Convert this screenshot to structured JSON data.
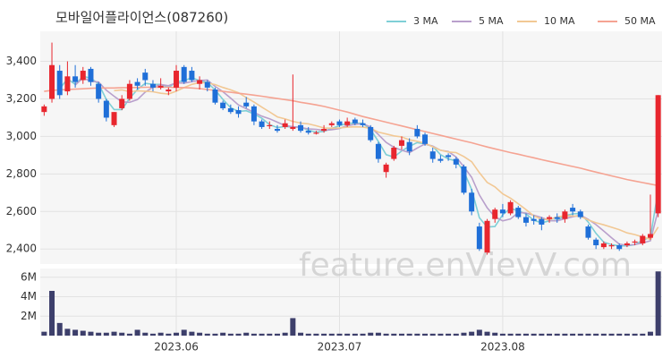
{
  "chart_data": {
    "type": "candlestick",
    "title": "모바일어플라이언스(087260)",
    "watermark": "feature.enVievV.com",
    "categories": [
      null,
      null,
      null,
      null,
      null,
      null,
      null,
      null,
      null,
      null,
      null,
      null,
      null,
      null,
      null,
      null,
      null,
      "2023.06",
      null,
      null,
      null,
      null,
      null,
      null,
      null,
      null,
      null,
      null,
      null,
      null,
      null,
      null,
      null,
      null,
      null,
      null,
      null,
      null,
      "2023.07",
      null,
      null,
      null,
      null,
      null,
      null,
      null,
      null,
      null,
      null,
      null,
      null,
      null,
      null,
      null,
      null,
      null,
      null,
      null,
      null,
      "2023.08",
      null,
      null,
      null,
      null,
      null,
      null,
      null,
      null,
      null,
      null,
      null,
      null,
      null,
      null,
      null,
      null,
      null,
      null,
      null,
      null
    ],
    "open": [
      3130,
      3200,
      3350,
      3240,
      3320,
      3300,
      3360,
      3280,
      3190,
      3060,
      3150,
      3200,
      3290,
      3340,
      3280,
      3260,
      3240,
      3260,
      3370,
      3350,
      3280,
      3290,
      3250,
      3180,
      3150,
      3140,
      3180,
      3160,
      3080,
      3060,
      3040,
      3050,
      3040,
      3060,
      3030,
      3020,
      3030,
      3060,
      3080,
      3060,
      3090,
      3070,
      3050,
      2960,
      2810,
      2880,
      2950,
      2970,
      3040,
      3010,
      2920,
      2880,
      2900,
      2880,
      2840,
      2700,
      2520,
      2380,
      2560,
      2610,
      2590,
      2620,
      2570,
      2560,
      2560,
      2560,
      2570,
      2560,
      2620,
      2600,
      2520,
      2450,
      2410,
      2420,
      2420,
      2420,
      2440,
      2430,
      2460,
      2590
    ],
    "high": [
      3170,
      3500,
      3380,
      3400,
      3380,
      3370,
      3370,
      3290,
      3200,
      3130,
      3220,
      3300,
      3310,
      3360,
      3300,
      3310,
      3260,
      3380,
      3380,
      3370,
      3320,
      3300,
      3260,
      3190,
      3170,
      3160,
      3210,
      3170,
      3090,
      3080,
      3060,
      3090,
      3330,
      3080,
      3050,
      3030,
      3060,
      3080,
      3090,
      3100,
      3100,
      3090,
      3060,
      2970,
      2860,
      2950,
      3000,
      2990,
      3060,
      3020,
      2940,
      2900,
      2910,
      2890,
      2850,
      2720,
      2540,
      2560,
      2620,
      2640,
      2660,
      2630,
      2590,
      2580,
      2570,
      2580,
      2590,
      2610,
      2640,
      2610,
      2530,
      2460,
      2440,
      2430,
      2430,
      2440,
      2450,
      2480,
      2690,
      3220
    ],
    "low": [
      3110,
      3180,
      3200,
      3220,
      3260,
      3280,
      3270,
      3180,
      3080,
      3050,
      3140,
      3190,
      3250,
      3270,
      3240,
      3250,
      3220,
      3240,
      3280,
      3290,
      3250,
      3240,
      3170,
      3140,
      3120,
      3100,
      3150,
      3060,
      3040,
      3040,
      3020,
      3040,
      3030,
      3020,
      3010,
      3010,
      3020,
      3050,
      3050,
      3050,
      3060,
      3050,
      2970,
      2860,
      2780,
      2870,
      2930,
      2900,
      2990,
      2950,
      2860,
      2860,
      2870,
      2830,
      2690,
      2580,
      2390,
      2370,
      2540,
      2570,
      2580,
      2560,
      2520,
      2530,
      2500,
      2540,
      2540,
      2540,
      2580,
      2560,
      2450,
      2400,
      2400,
      2400,
      2390,
      2410,
      2420,
      2420,
      2450,
      2570
    ],
    "close": [
      3160,
      3380,
      3220,
      3320,
      3290,
      3350,
      3290,
      3200,
      3100,
      3130,
      3200,
      3280,
      3270,
      3300,
      3260,
      3270,
      3250,
      3350,
      3290,
      3300,
      3300,
      3260,
      3180,
      3150,
      3130,
      3120,
      3160,
      3080,
      3050,
      3060,
      3030,
      3070,
      3050,
      3030,
      3020,
      3020,
      3040,
      3070,
      3060,
      3080,
      3070,
      3060,
      2980,
      2880,
      2850,
      2940,
      2980,
      2920,
      3000,
      2960,
      2880,
      2870,
      2890,
      2850,
      2700,
      2600,
      2400,
      2550,
      2610,
      2590,
      2650,
      2570,
      2540,
      2550,
      2530,
      2570,
      2560,
      2600,
      2600,
      2570,
      2460,
      2420,
      2430,
      2420,
      2400,
      2430,
      2440,
      2470,
      2480,
      3220
    ],
    "up_color": "#e8262e",
    "down_color": "#1f6fd8",
    "series": [
      {
        "name": "3 MA",
        "color": "#7fcfd6",
        "values": [
          null,
          null,
          3253,
          3307,
          3277,
          3320,
          3310,
          3280,
          3197,
          3143,
          3143,
          3203,
          3250,
          3283,
          3277,
          3277,
          3260,
          3290,
          3297,
          3313,
          3297,
          3287,
          3247,
          3197,
          3153,
          3133,
          3137,
          3120,
          3097,
          3063,
          3047,
          3053,
          3050,
          3050,
          3033,
          3023,
          3027,
          3043,
          3057,
          3070,
          3070,
          3070,
          3037,
          2973,
          2903,
          2890,
          2923,
          2947,
          2967,
          2960,
          2947,
          2903,
          2880,
          2870,
          2813,
          2717,
          2567,
          2517,
          2520,
          2583,
          2617,
          2603,
          2587,
          2553,
          2540,
          2550,
          2553,
          2577,
          2587,
          2590,
          2543,
          2483,
          2437,
          2423,
          2417,
          2417,
          2423,
          2447,
          2463,
          2713
        ]
      },
      {
        "name": "5 MA",
        "color": "#b9a0cc",
        "values": [
          null,
          null,
          null,
          null,
          3274,
          3312,
          3294,
          3290,
          3246,
          3214,
          3184,
          3182,
          3196,
          3236,
          3262,
          3276,
          3270,
          3286,
          3284,
          3292,
          3298,
          3300,
          3266,
          3238,
          3204,
          3168,
          3148,
          3128,
          3108,
          3094,
          3076,
          3058,
          3052,
          3048,
          3040,
          3038,
          3032,
          3036,
          3042,
          3058,
          3064,
          3068,
          3050,
          3010,
          2968,
          2942,
          2926,
          2914,
          2938,
          2960,
          2948,
          2926,
          2920,
          2890,
          2838,
          2782,
          2688,
          2620,
          2572,
          2550,
          2560,
          2594,
          2592,
          2580,
          2568,
          2552,
          2550,
          2562,
          2572,
          2580,
          2558,
          2530,
          2496,
          2460,
          2426,
          2420,
          2424,
          2432,
          2444,
          2608
        ]
      },
      {
        "name": "10 MA",
        "color": "#f2c894",
        "values": [
          null,
          null,
          null,
          null,
          null,
          null,
          null,
          null,
          null,
          3244,
          3248,
          3238,
          3243,
          3241,
          3238,
          3230,
          3226,
          3241,
          3260,
          3277,
          3287,
          3285,
          3276,
          3261,
          3248,
          3233,
          3207,
          3183,
          3156,
          3131,
          3104,
          3093,
          3080,
          3071,
          3067,
          3057,
          3045,
          3044,
          3045,
          3049,
          3051,
          3050,
          3043,
          3023,
          3013,
          3003,
          2997,
          2982,
          2974,
          2964,
          2945,
          2926,
          2917,
          2914,
          2893,
          2865,
          2807,
          2755,
          2731,
          2694,
          2671,
          2641,
          2610,
          2576,
          2559,
          2556,
          2571,
          2577,
          2576,
          2574,
          2555,
          2540,
          2529,
          2516,
          2503,
          2486,
          2477,
          2464,
          2452,
          2517
        ]
      },
      {
        "name": "50 MA",
        "color": "#f5a392",
        "values": [
          3240,
          3245,
          3248,
          3250,
          3252,
          3254,
          3256,
          3258,
          3258,
          3258,
          3260,
          3260,
          3261,
          3262,
          3262,
          3262,
          3262,
          3261,
          3260,
          3258,
          3255,
          3250,
          3245,
          3240,
          3235,
          3230,
          3225,
          3220,
          3214,
          3208,
          3202,
          3196,
          3190,
          3182,
          3175,
          3168,
          3160,
          3150,
          3140,
          3130,
          3118,
          3106,
          3096,
          3086,
          3076,
          3066,
          3056,
          3046,
          3036,
          3026,
          3016,
          3006,
          2996,
          2986,
          2976,
          2966,
          2955,
          2944,
          2934,
          2924,
          2914,
          2905,
          2895,
          2886,
          2876,
          2867,
          2858,
          2849,
          2840,
          2831,
          2820,
          2810,
          2800,
          2790,
          2780,
          2770,
          2762,
          2754,
          2746,
          2738
        ]
      }
    ],
    "ylim": [
      2320,
      3560
    ],
    "yticks": [
      {
        "value": 2400,
        "label": "2,400"
      },
      {
        "value": 2600,
        "label": "2,600"
      },
      {
        "value": 2800,
        "label": "2,800"
      },
      {
        "value": 3000,
        "label": "3,000"
      },
      {
        "value": 3200,
        "label": "3,200"
      },
      {
        "value": 3400,
        "label": "3,400"
      }
    ],
    "grid": true,
    "volume": {
      "color": "#3d3f6b",
      "values": [
        400000,
        4600000,
        1300000,
        700000,
        600000,
        500000,
        400000,
        300000,
        300000,
        400000,
        300000,
        200000,
        600000,
        300000,
        200000,
        300000,
        200000,
        300000,
        600000,
        400000,
        300000,
        200000,
        200000,
        300000,
        200000,
        200000,
        300000,
        200000,
        200000,
        200000,
        200000,
        300000,
        1800000,
        300000,
        200000,
        200000,
        200000,
        200000,
        200000,
        200000,
        200000,
        200000,
        300000,
        300000,
        200000,
        200000,
        200000,
        200000,
        200000,
        200000,
        200000,
        200000,
        200000,
        200000,
        300000,
        400000,
        600000,
        400000,
        300000,
        200000,
        200000,
        200000,
        200000,
        200000,
        200000,
        200000,
        200000,
        200000,
        200000,
        200000,
        200000,
        200000,
        200000,
        200000,
        200000,
        200000,
        200000,
        200000,
        400000,
        6600000
      ],
      "ylim": [
        0,
        6900000
      ],
      "yticks": [
        {
          "value": 2000000,
          "label": "2M"
        },
        {
          "value": 4000000,
          "label": "4M"
        },
        {
          "value": 6000000,
          "label": "6M"
        }
      ]
    }
  }
}
